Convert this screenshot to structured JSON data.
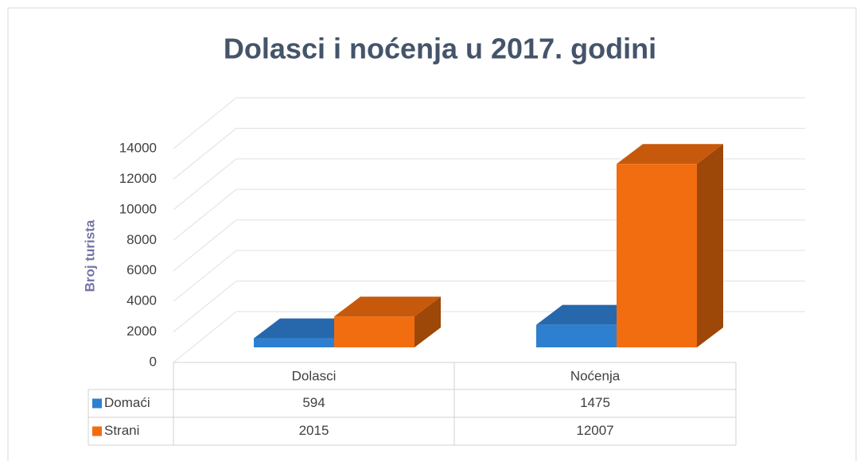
{
  "chart_data": {
    "type": "bar3d",
    "title": "Dolasci i noćenja u 2017. godini",
    "ylabel": "Broj turista",
    "categories": [
      "Dolasci",
      "Noćenja"
    ],
    "series": [
      {
        "name": "Domaći",
        "color": "#2f7fd1",
        "values": [
          594,
          1475
        ]
      },
      {
        "name": "Strani",
        "color": "#f26d0f",
        "values": [
          2015,
          12007
        ]
      }
    ],
    "ylim": [
      0,
      14000
    ],
    "yticks": [
      0,
      2000,
      4000,
      6000,
      8000,
      10000,
      12000,
      14000
    ],
    "grid": true,
    "data_table": true
  }
}
